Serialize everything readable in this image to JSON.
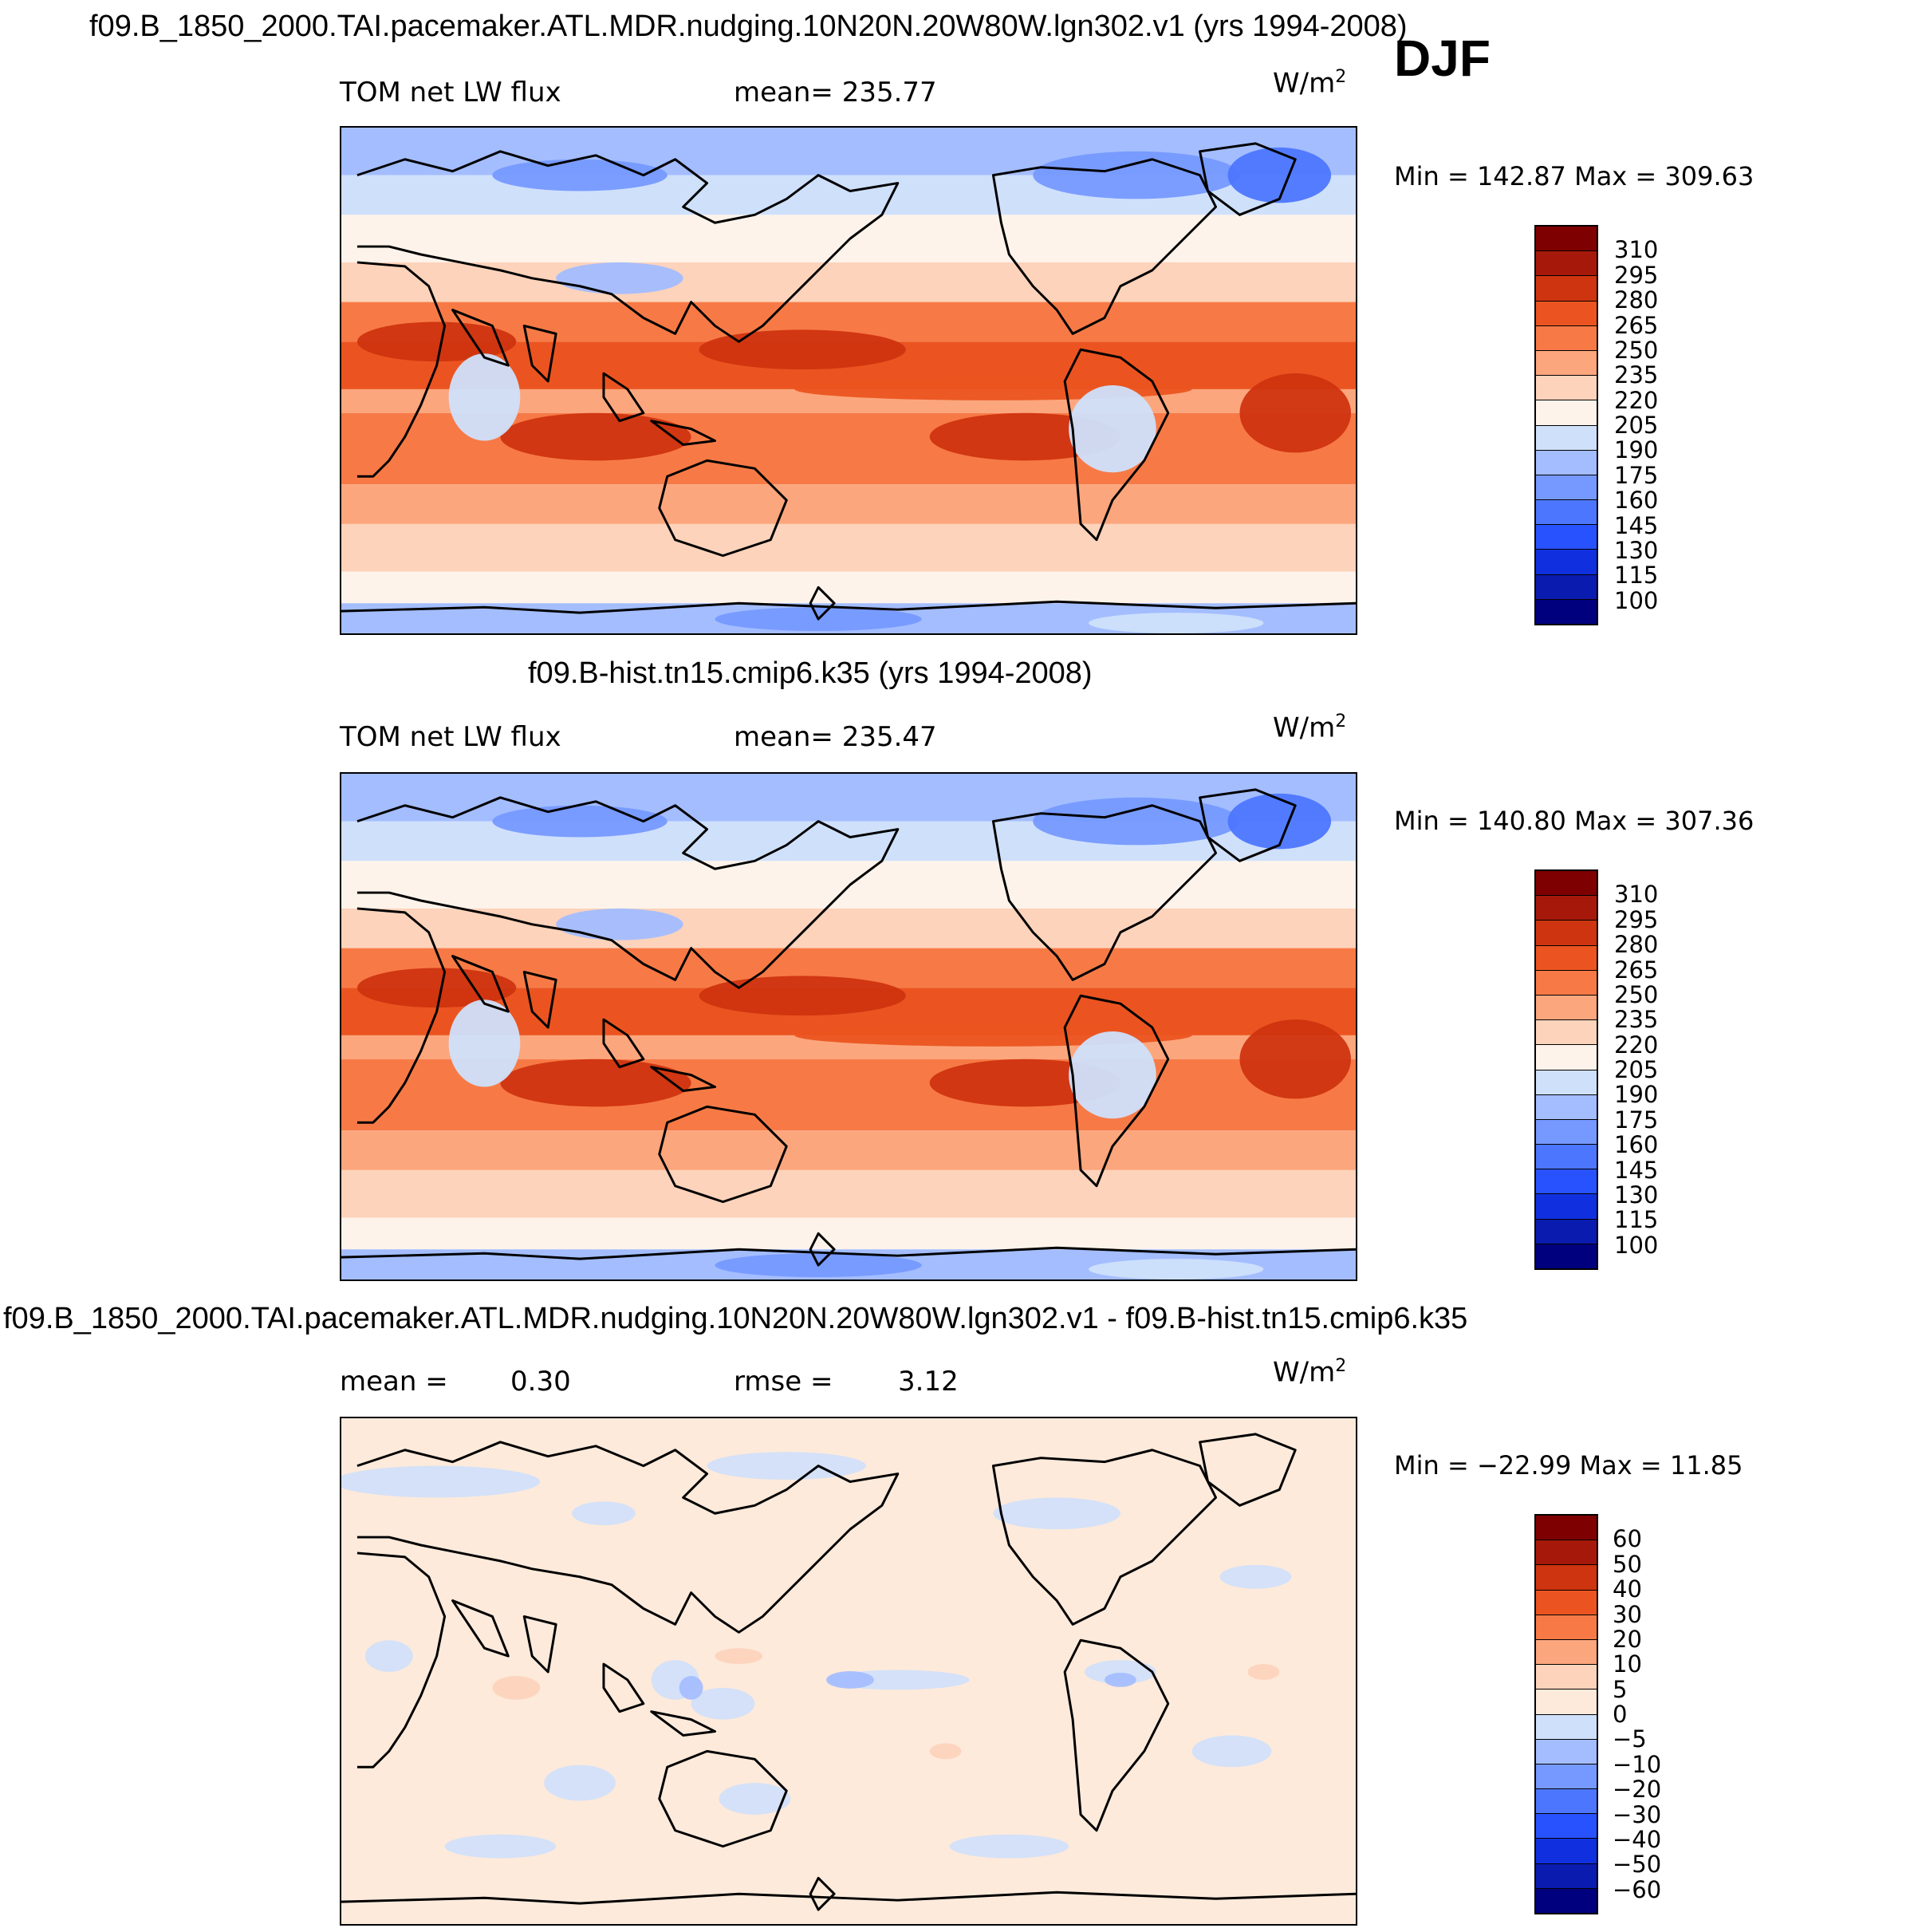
{
  "figure": {
    "season": "DJF",
    "units": "W/m",
    "units_exp": "2",
    "abs_colors": [
      "#00007f",
      "#0a1bb0",
      "#1030e0",
      "#2952ff",
      "#4d76ff",
      "#7699ff",
      "#a3bdff",
      "#cfe0fb",
      "#fdf3ea",
      "#fdd3bb",
      "#fca67d",
      "#f77a46",
      "#eb5420",
      "#cf3410",
      "#a6190a",
      "#7f0000"
    ],
    "abs_levels": [
      "310",
      "295",
      "280",
      "265",
      "250",
      "235",
      "220",
      "205",
      "190",
      "175",
      "160",
      "145",
      "130",
      "115",
      "100"
    ],
    "diff_colors": [
      "#00007f",
      "#0a1bb0",
      "#1030e0",
      "#2952ff",
      "#4d76ff",
      "#7699ff",
      "#a3bdff",
      "#cfe0fb",
      "#fdeadb",
      "#fdd3bb",
      "#fca67d",
      "#f77a46",
      "#eb5420",
      "#cf3410",
      "#a6190a",
      "#7f0000"
    ],
    "diff_levels": [
      "60",
      "50",
      "40",
      "30",
      "20",
      "10",
      "5",
      "0",
      "−5",
      "−10",
      "−20",
      "−30",
      "−40",
      "−50",
      "−60"
    ]
  },
  "panels": [
    {
      "title": "f09.B_1850_2000.TAI.pacemaker.ATL.MDR.nudging.10N20N.20W80W.lgn302.v1 (yrs 1994-2008)",
      "variable": "TOM net LW flux",
      "mean_text": "mean= 235.77",
      "minmax": "Min = 142.87 Max = 309.63"
    },
    {
      "title": "f09.B-hist.tn15.cmip6.k35 (yrs 1994-2008)",
      "variable": "TOM net LW flux",
      "mean_text": "mean= 235.47",
      "minmax": "Min = 140.80 Max = 307.36"
    },
    {
      "title": "f09.B_1850_2000.TAI.pacemaker.ATL.MDR.nudging.10N20N.20W80W.lgn302.v1 - f09.B-hist.tn15.cmip6.k35",
      "mean_label": "mean =",
      "mean_value": "0.30",
      "rmse_label": "rmse =",
      "rmse_value": "3.12",
      "minmax": "Min = −22.99 Max =  11.85"
    }
  ]
}
